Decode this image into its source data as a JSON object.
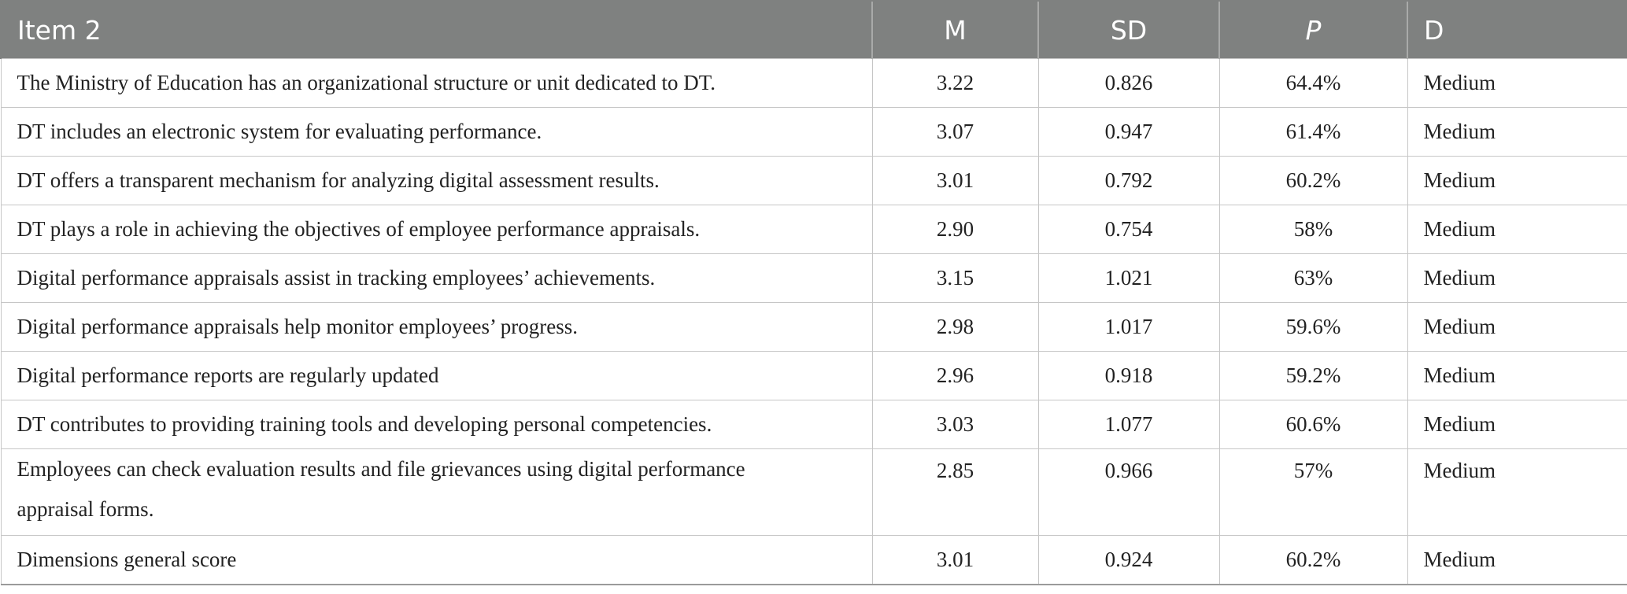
{
  "table": {
    "headers": [
      "Item 2",
      "M",
      "SD",
      "P",
      "D"
    ],
    "rows": [
      {
        "item": "The Ministry of Education has an organizational structure or unit dedicated to DT.",
        "m": "3.22",
        "sd": "0.826",
        "p": "64.4%",
        "d": "Medium"
      },
      {
        "item": "DT includes an electronic system for evaluating performance.",
        "m": "3.07",
        "sd": "0.947",
        "p": "61.4%",
        "d": "Medium"
      },
      {
        "item": "DT offers a transparent mechanism for analyzing digital assessment results.",
        "m": "3.01",
        "sd": "0.792",
        "p": "60.2%",
        "d": "Medium"
      },
      {
        "item": "DT plays a role in achieving the objectives of employee performance appraisals.",
        "m": "2.90",
        "sd": "0.754",
        "p": "58%",
        "d": "Medium"
      },
      {
        "item": "Digital performance appraisals assist in tracking employees’ achievements.",
        "m": "3.15",
        "sd": "1.021",
        "p": "63%",
        "d": "Medium"
      },
      {
        "item": "Digital performance appraisals help monitor employees’ progress.",
        "m": "2.98",
        "sd": "1.017",
        "p": "59.6%",
        "d": "Medium"
      },
      {
        "item": "Digital performance reports are regularly updated",
        "m": "2.96",
        "sd": "0.918",
        "p": "59.2%",
        "d": "Medium"
      },
      {
        "item": "DT contributes to providing training tools and developing personal competencies.",
        "m": "3.03",
        "sd": "1.077",
        "p": "60.6%",
        "d": "Medium"
      },
      {
        "item": "Employees can check evaluation results and file grievances using digital performance appraisal forms.",
        "m": "2.85",
        "sd": "0.966",
        "p": "57%",
        "d": "Medium"
      },
      {
        "item": "Dimensions general score",
        "m": "3.01",
        "sd": "0.924",
        "p": "60.2%",
        "d": "Medium"
      }
    ]
  }
}
